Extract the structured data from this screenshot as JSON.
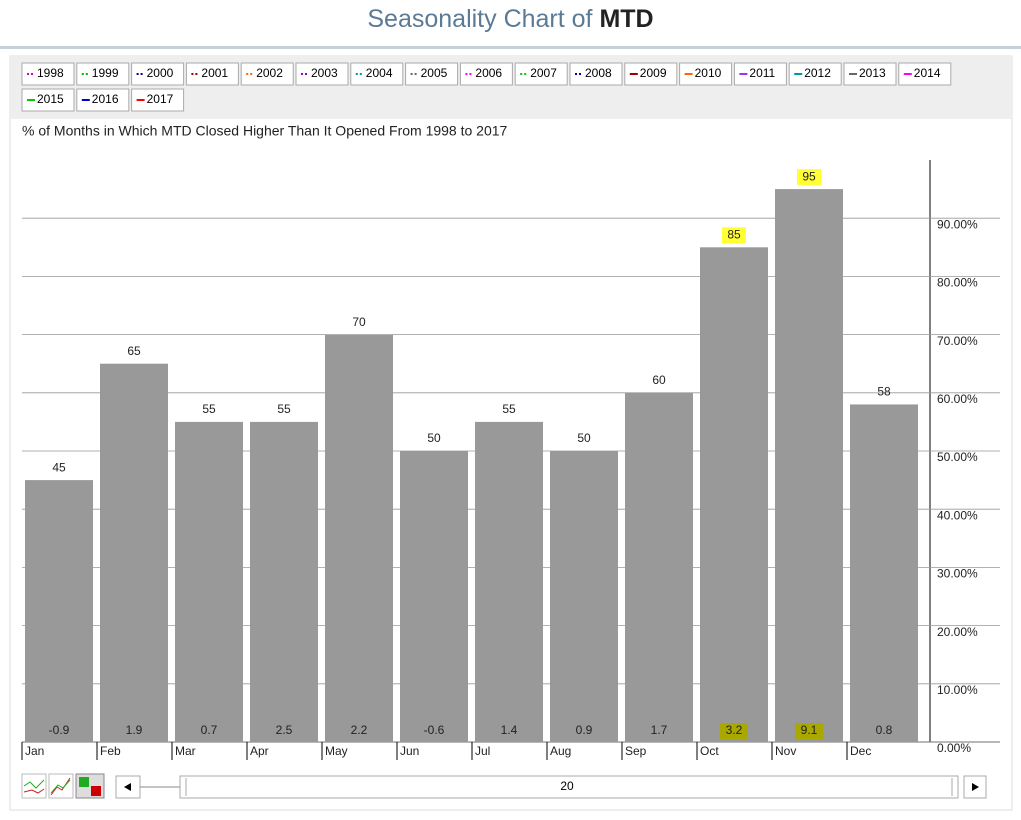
{
  "page_title": {
    "text": "Seasonality Chart of",
    "symbol": "MTD"
  },
  "chart_data": {
    "type": "bar",
    "subtitle": "% of Months in Which MTD Closed Higher Than It Opened From 1998 to 2017",
    "categories": [
      "Jan",
      "Feb",
      "Mar",
      "Apr",
      "May",
      "Jun",
      "Jul",
      "Aug",
      "Sep",
      "Oct",
      "Nov",
      "Dec"
    ],
    "values": [
      45,
      65,
      55,
      55,
      70,
      50,
      55,
      50,
      60,
      85,
      95,
      58
    ],
    "avg_change": [
      -0.9,
      1.9,
      0.7,
      2.5,
      2.2,
      -0.6,
      1.4,
      0.9,
      1.7,
      3.2,
      9.1,
      0.8
    ],
    "color": "#999999",
    "highlighted": [
      9,
      10
    ],
    "highlight_color": "#ffff33",
    "highlight_bottom_color": "#a8a800",
    "ylim": [
      0,
      100
    ],
    "yticks": [
      {
        "value": 0,
        "label": "0.00%"
      },
      {
        "value": 10,
        "label": "10.00%"
      },
      {
        "value": 20,
        "label": "20.00%"
      },
      {
        "value": 30,
        "label": "30.00%"
      },
      {
        "value": 40,
        "label": "40.00%"
      },
      {
        "value": 50,
        "label": "50.00%"
      },
      {
        "value": 60,
        "label": "60.00%"
      },
      {
        "value": 70,
        "label": "70.00%"
      },
      {
        "value": 80,
        "label": "80.00%"
      },
      {
        "value": 90,
        "label": "90.00%"
      }
    ],
    "grid": true,
    "legend": [
      {
        "name": "1998",
        "color": "#cc00cc",
        "style": "dotted"
      },
      {
        "name": "1999",
        "color": "#00bb00",
        "style": "dotted"
      },
      {
        "name": "2000",
        "color": "#000099",
        "style": "dotted"
      },
      {
        "name": "2001",
        "color": "#990000",
        "style": "dotted"
      },
      {
        "name": "2002",
        "color": "#ff6600",
        "style": "dotted"
      },
      {
        "name": "2003",
        "color": "#9900cc",
        "style": "dotted"
      },
      {
        "name": "2004",
        "color": "#009999",
        "style": "dotted"
      },
      {
        "name": "2005",
        "color": "#666666",
        "style": "dotted"
      },
      {
        "name": "2006",
        "color": "#ff00ff",
        "style": "dotted"
      },
      {
        "name": "2007",
        "color": "#00cc00",
        "style": "dotted"
      },
      {
        "name": "2008",
        "color": "#0000cc",
        "style": "dotted"
      },
      {
        "name": "2009",
        "color": "#990000",
        "style": "solid"
      },
      {
        "name": "2010",
        "color": "#ff6600",
        "style": "solid"
      },
      {
        "name": "2011",
        "color": "#9933ff",
        "style": "solid"
      },
      {
        "name": "2012",
        "color": "#009999",
        "style": "solid"
      },
      {
        "name": "2013",
        "color": "#666666",
        "style": "solid"
      },
      {
        "name": "2014",
        "color": "#ff00ff",
        "style": "solid"
      },
      {
        "name": "2015",
        "color": "#00cc00",
        "style": "solid"
      },
      {
        "name": "2016",
        "color": "#0000cc",
        "style": "solid"
      },
      {
        "name": "2017",
        "color": "#ff0000",
        "style": "solid"
      }
    ],
    "slider_value": 20
  }
}
